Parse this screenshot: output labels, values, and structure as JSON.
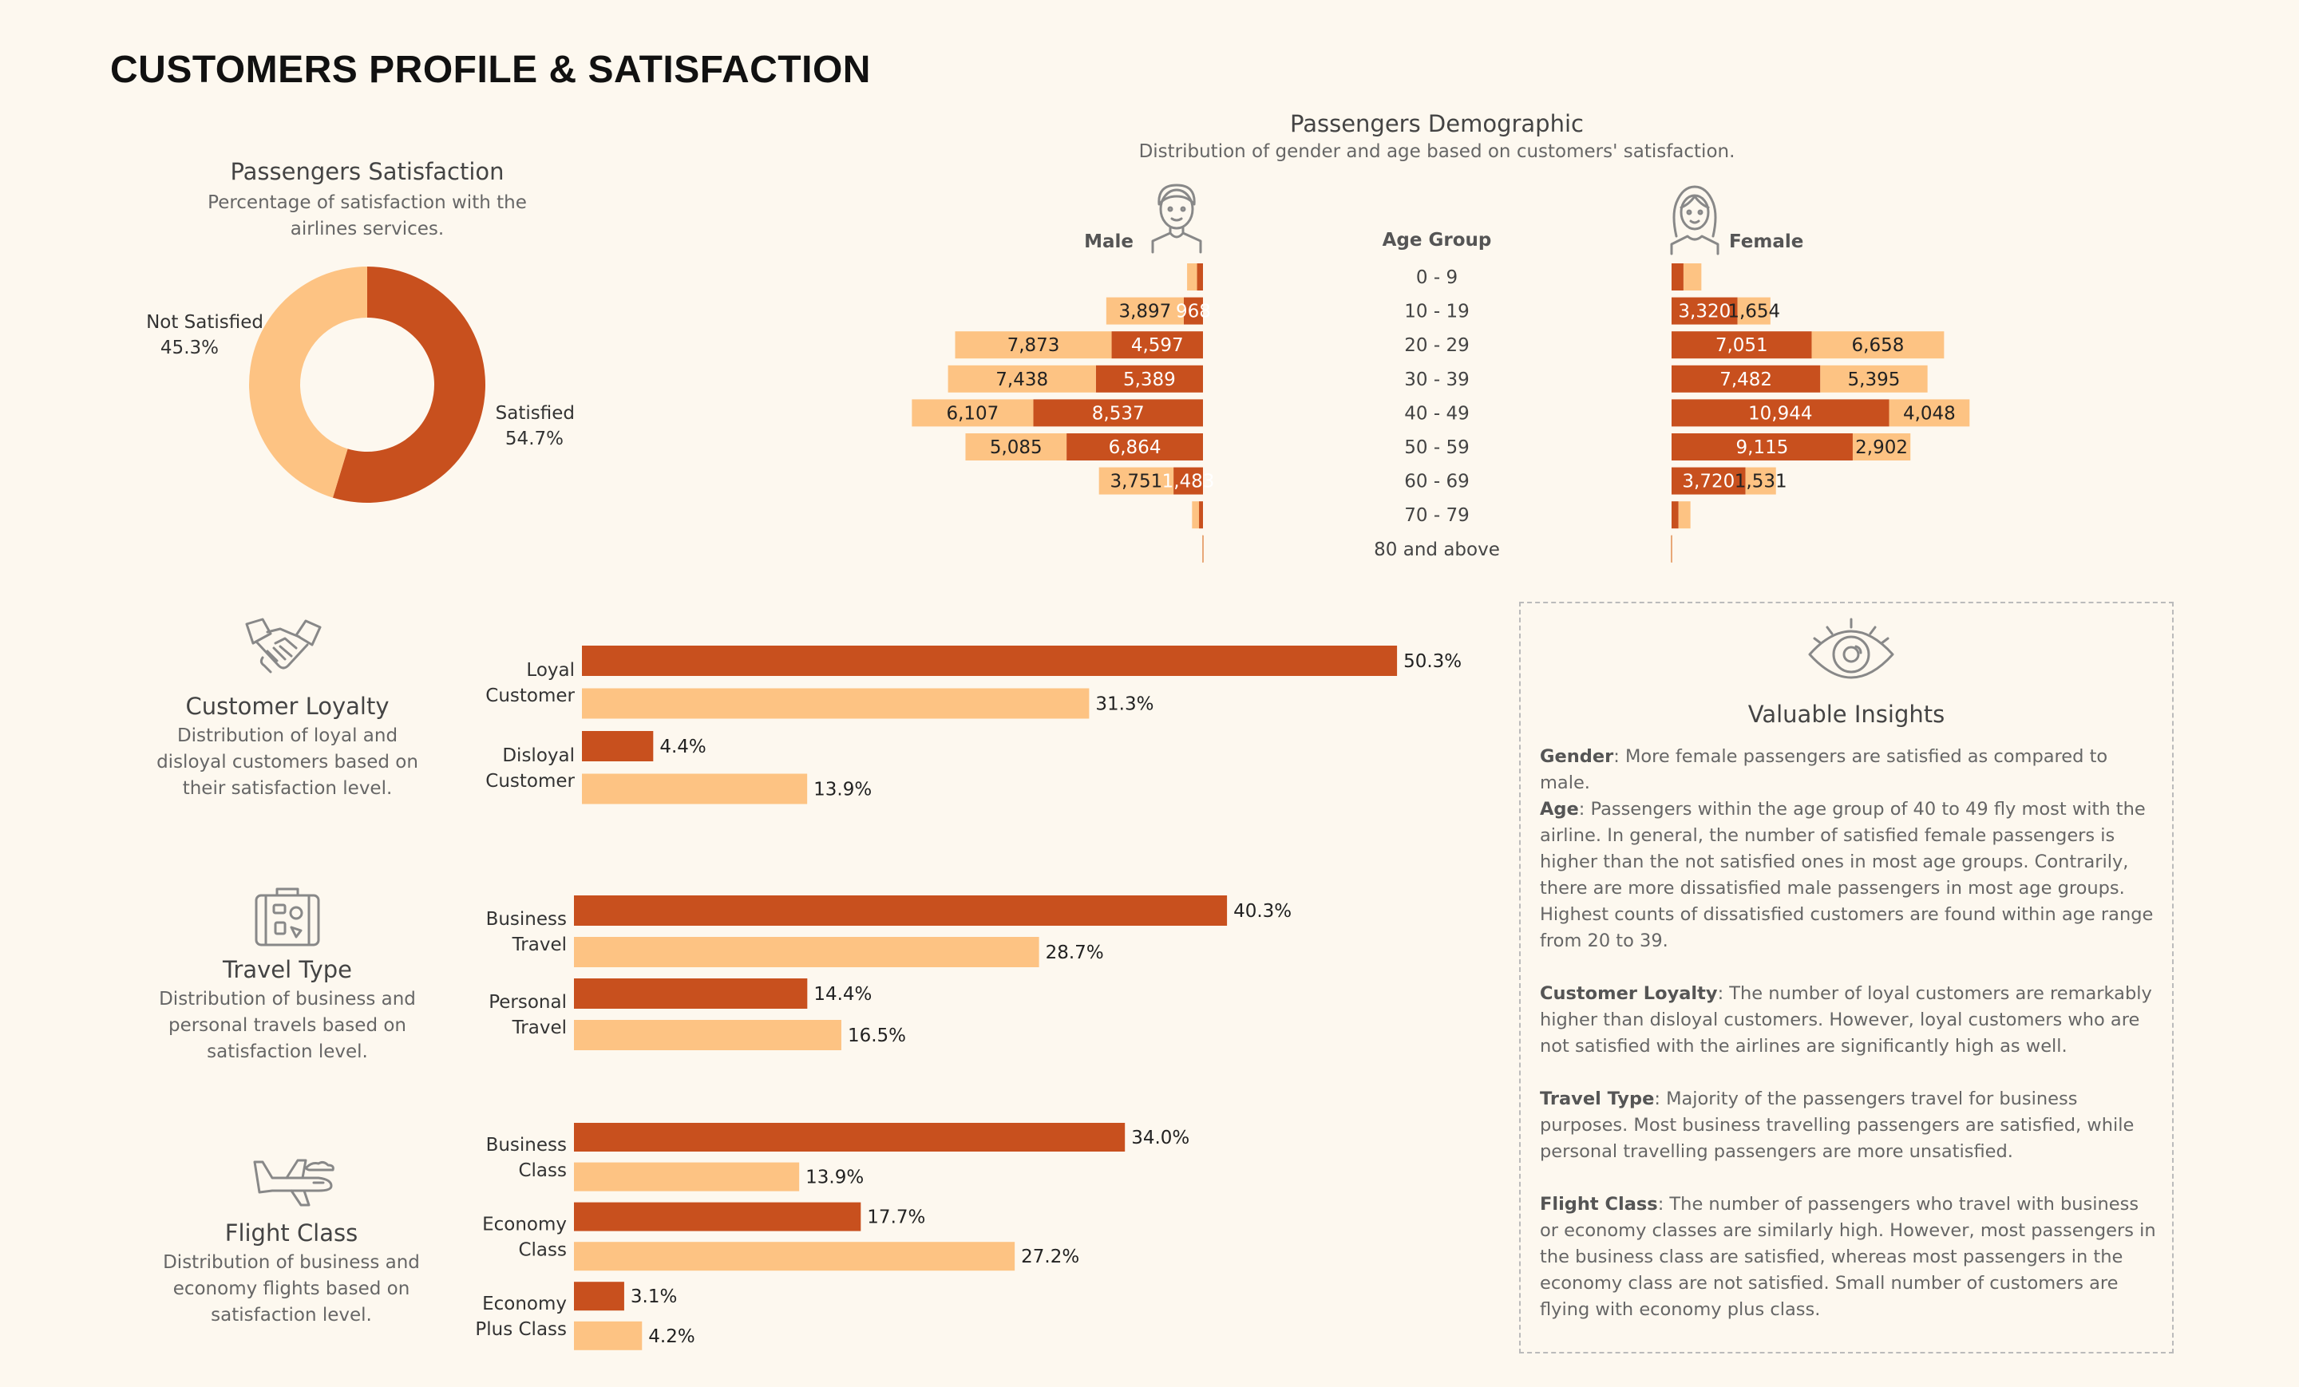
{
  "title": "CUSTOMERS PROFILE & SATISFACTION",
  "colors": {
    "satisfied": "#c8501e",
    "not_satisfied": "#fdc383",
    "background": "#fdf8ef"
  },
  "satisfaction": {
    "title": "Passengers Satisfaction",
    "subtitle_line1": "Percentage of satisfaction with the",
    "subtitle_line2": "airlines services.",
    "not_satisfied_label": "Not Satisfied",
    "not_satisfied_pct": "45.3%",
    "satisfied_label": "Satisfied",
    "satisfied_pct": "54.7%"
  },
  "demographic": {
    "title": "Passengers Demographic",
    "subtitle": "Distribution of gender and age based on customers' satisfaction.",
    "male_label": "Male",
    "female_label": "Female",
    "age_group_label": "Age Group",
    "male_icon": "man-avatar-icon",
    "female_icon": "woman-avatar-icon"
  },
  "loyalty": {
    "icon": "handshake-icon",
    "title": "Customer Loyalty",
    "sub_lines": [
      "Distribution of loyal and",
      "disloyal customers based on",
      "their satisfaction level."
    ]
  },
  "travel": {
    "icon": "suitcase-icon",
    "title": "Travel Type",
    "sub_lines": [
      "Distribution of business and",
      "personal travels based on",
      "satisfaction level."
    ]
  },
  "flight": {
    "icon": "airplane-icon",
    "title": "Flight Class",
    "sub_lines": [
      "Distribution of business and",
      "economy flights based on",
      "satisfaction level."
    ]
  },
  "insights": {
    "icon": "eye-icon",
    "title": "Valuable Insights",
    "items": [
      {
        "head": "Gender",
        "text": ": More female passengers are satisfied as compared to male."
      },
      {
        "head": "Age",
        "text": ": Passengers within the age group of 40 to 49 fly most with the airline. In general, the number of satisfied female passengers is higher than the not satisfied ones in most age groups. Contrarily, there are more dissatisfied male passengers in most age groups. Highest counts of dissatisfied customers are found within age range from 20 to 39."
      },
      {
        "head": "Customer Loyalty",
        "text": ": The number of loyal customers are remarkably higher than disloyal customers. However, loyal customers who are not satisfied with the airlines are significantly high as well."
      },
      {
        "head": "Travel Type",
        "text": ": Majority of the passengers travel for business purposes. Most business travelling passengers are satisfied, while personal travelling passengers are more unsatisfied."
      },
      {
        "head": "Flight Class",
        "text": ": The number of passengers who travel with business or economy classes are similarly high. However, most passengers in the business class are satisfied, whereas most passengers in the economy class are not satisfied. Small number of customers are flying with economy plus class."
      }
    ]
  },
  "chart_data": [
    {
      "id": "satisfaction_donut",
      "type": "pie",
      "title": "Passengers Satisfaction",
      "categories": [
        "Satisfied",
        "Not Satisfied"
      ],
      "values": [
        54.7,
        45.3
      ]
    },
    {
      "id": "demographic_pyramid",
      "type": "bar",
      "title": "Passengers Demographic",
      "categories": [
        "0 - 9",
        "10 - 19",
        "20 - 29",
        "30 - 39",
        "40 - 49",
        "50 - 59",
        "60 - 69",
        "70 - 79",
        "80 and above"
      ],
      "series": [
        {
          "name": "Male Satisfied",
          "values": [
            300,
            968,
            4597,
            5389,
            8537,
            6864,
            1483,
            200,
            20
          ]
        },
        {
          "name": "Male Not Satisfied",
          "values": [
            500,
            3897,
            7873,
            7438,
            6107,
            5085,
            3751,
            350,
            20
          ]
        },
        {
          "name": "Female Satisfied",
          "values": [
            600,
            3320,
            7051,
            7482,
            10944,
            9115,
            3720,
            350,
            20
          ]
        },
        {
          "name": "Female Not Satisfied",
          "values": [
            900,
            1654,
            6658,
            5395,
            4048,
            2902,
            1531,
            600,
            20
          ]
        }
      ],
      "labels": {
        "male_sat": [
          "",
          "968",
          "4,597",
          "5,389",
          "8,537",
          "6,864",
          "1,483",
          "",
          ""
        ],
        "male_not": [
          "",
          "3,897",
          "7,873",
          "7,438",
          "6,107",
          "5,085",
          "3,751",
          "",
          ""
        ],
        "female_sat": [
          "",
          "3,320",
          "7,051",
          "7,482",
          "10,944",
          "9,115",
          "3,720",
          "",
          ""
        ],
        "female_not": [
          "",
          "1,654",
          "6,658",
          "5,395",
          "4,048",
          "2,902",
          "1,531",
          "",
          ""
        ]
      }
    },
    {
      "id": "loyalty_bars",
      "type": "bar",
      "title": "Customer Loyalty",
      "groups": [
        {
          "label": [
            "Loyal",
            "Customer"
          ],
          "satisfied": 50.3,
          "not_satisfied": 31.3
        },
        {
          "label": [
            "Disloyal",
            "Customer"
          ],
          "satisfied": 4.4,
          "not_satisfied": 13.9
        }
      ]
    },
    {
      "id": "travel_bars",
      "type": "bar",
      "title": "Travel Type",
      "groups": [
        {
          "label": [
            "Business",
            "Travel"
          ],
          "satisfied": 40.3,
          "not_satisfied": 28.7
        },
        {
          "label": [
            "Personal",
            "Travel"
          ],
          "satisfied": 14.4,
          "not_satisfied": 16.5
        }
      ]
    },
    {
      "id": "class_bars",
      "type": "bar",
      "title": "Flight Class",
      "groups": [
        {
          "label": [
            "Business",
            "Class"
          ],
          "satisfied": 34.0,
          "not_satisfied": 13.9
        },
        {
          "label": [
            "Economy",
            "Class"
          ],
          "satisfied": 17.7,
          "not_satisfied": 27.2
        },
        {
          "label": [
            "Economy",
            "Plus Class"
          ],
          "satisfied": 3.1,
          "not_satisfied": 4.2
        }
      ]
    }
  ]
}
